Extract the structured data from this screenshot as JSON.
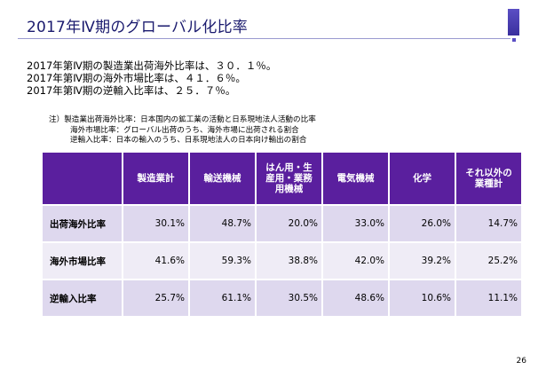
{
  "title": "2017年Ⅳ期のグローバル化比率",
  "summary": [
    "2017年第Ⅳ期の製造業出荷海外比率は、３０．１％。",
    "2017年第Ⅳ期の海外市場比率は、４１．６％。",
    "2017年第Ⅳ期の逆輸入比率は、２５．７％。"
  ],
  "notes": [
    "注）製造業出荷海外比率：日本国内の鉱工業の活動と日系現地法人活動の比率",
    "海外市場比率：グローバル出荷のうち、海外市場に出荷される割合",
    "逆輸入比率：日本の輸入のうち、日系現地法人の日本向け輸出の割合"
  ],
  "table": {
    "headers": [
      "製造業計",
      "輸送機械",
      "はん用・生産用・業務用機械",
      "電気機械",
      "化学",
      "それ以外の業種計"
    ],
    "rows": [
      {
        "label": "出荷海外比率",
        "values": [
          "30.1%",
          "48.7%",
          "20.0%",
          "33.0%",
          "26.0%",
          "14.7%"
        ]
      },
      {
        "label": "海外市場比率",
        "values": [
          "41.6%",
          "59.3%",
          "38.8%",
          "42.0%",
          "39.2%",
          "25.2%"
        ]
      },
      {
        "label": "逆輸入比率",
        "values": [
          "25.7%",
          "61.1%",
          "30.5%",
          "48.6%",
          "10.6%",
          "11.1%"
        ]
      }
    ]
  },
  "page_number": "26",
  "colors": {
    "title": "#1a1a6e",
    "header_bg": "#5a1f9e",
    "row_bg_dark": "#ded8ee",
    "row_bg_light": "#efecf6",
    "accent": "#5b4fc4"
  }
}
